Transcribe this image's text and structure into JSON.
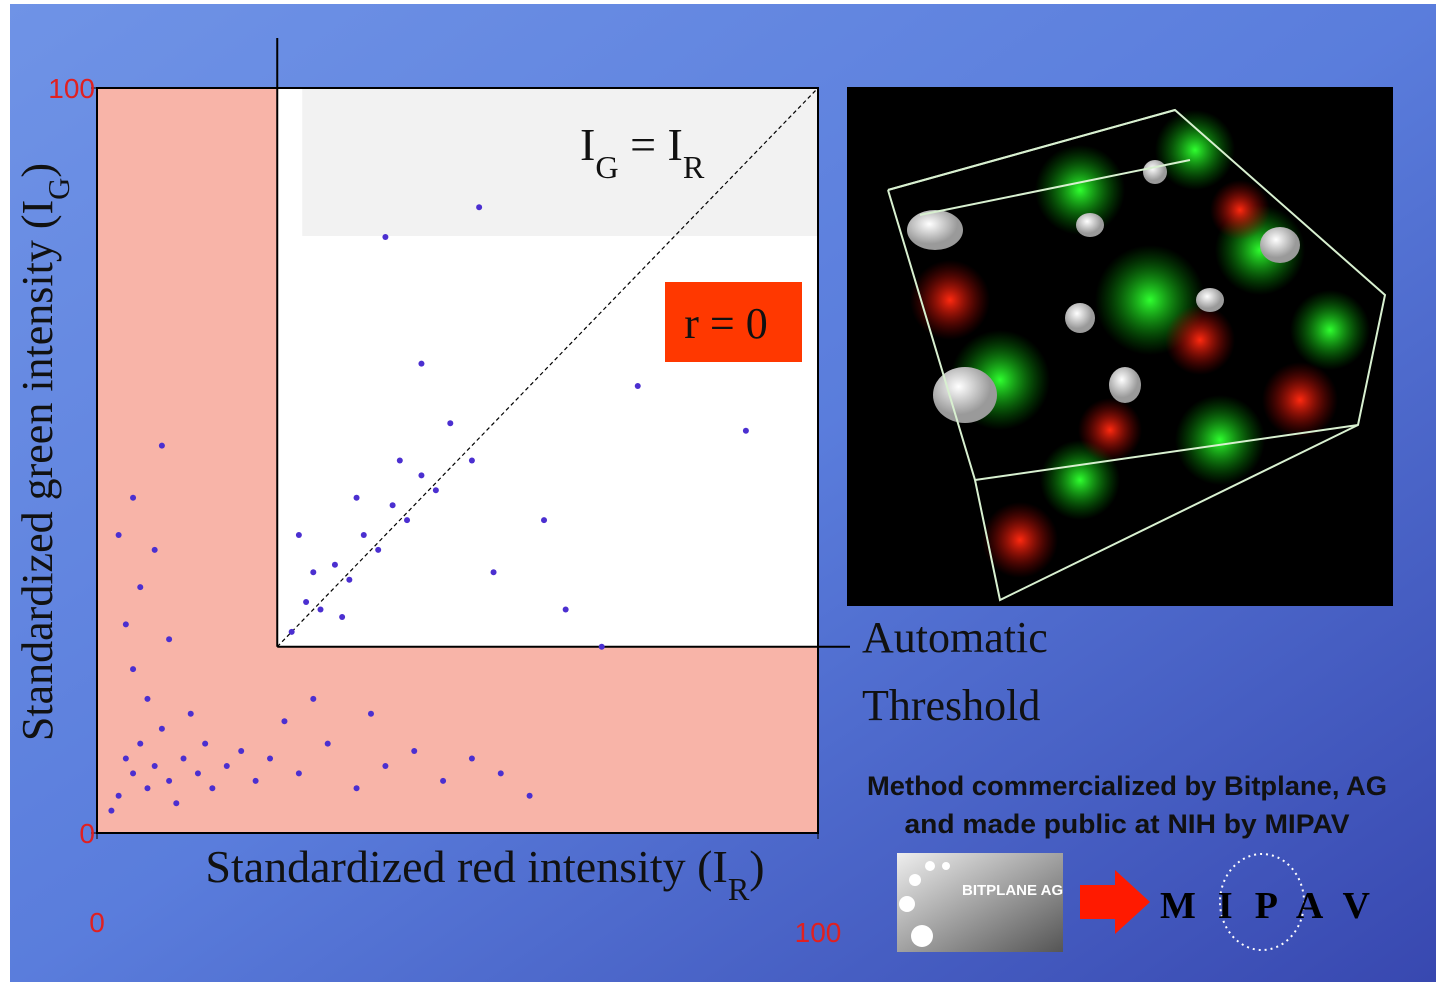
{
  "chart_data": {
    "type": "scatter",
    "x_label": [
      "Standardized red intensity (I",
      "R",
      ")"
    ],
    "y_label": [
      "Standardized green intensity (I",
      "G",
      ")"
    ],
    "identity_label": [
      "I",
      "G",
      " = I",
      "R"
    ],
    "correlation_label": "r = 0",
    "threshold_label": [
      "Automatic",
      "Threshold"
    ],
    "threshold": {
      "x": 25,
      "y": 25
    },
    "xlim": [
      0,
      100
    ],
    "ylim": [
      0,
      100
    ],
    "xticks": [
      0,
      100
    ],
    "yticks": [
      0,
      100
    ],
    "color": "#4b2fd0",
    "x": [
      3,
      5,
      7,
      4,
      8,
      10,
      6,
      12,
      14,
      9,
      2,
      11,
      15,
      18,
      16,
      20,
      22,
      13,
      7,
      5,
      4,
      6,
      8,
      5,
      9,
      3,
      10,
      24,
      28,
      32,
      36,
      40,
      44,
      48,
      52,
      56,
      60,
      30,
      26,
      38,
      27,
      29,
      31,
      33,
      35,
      37,
      39,
      41,
      43,
      45,
      47,
      30,
      34,
      42,
      49,
      52,
      36,
      28,
      55,
      62,
      40,
      53,
      45,
      75,
      90,
      65,
      70
    ],
    "y": [
      5,
      8,
      6,
      10,
      9,
      7,
      12,
      10,
      8,
      14,
      3,
      4,
      12,
      9,
      6,
      11,
      7,
      16,
      18,
      22,
      28,
      33,
      38,
      45,
      52,
      40,
      26,
      10,
      8,
      12,
      6,
      9,
      11,
      7,
      10,
      8,
      5,
      18,
      15,
      16,
      27,
      31,
      30,
      36,
      34,
      40,
      38,
      44,
      42,
      48,
      46,
      35,
      29,
      50,
      55,
      50,
      45,
      40,
      35,
      42,
      80,
      84,
      63,
      60,
      54,
      30,
      25
    ]
  },
  "footer": {
    "lines": [
      "Method commercialized by Bitplane, AG",
      "and made public at NIH by MIPAV"
    ],
    "logo_left": "BITPLANE AG",
    "logo_right": "M I P A V"
  }
}
